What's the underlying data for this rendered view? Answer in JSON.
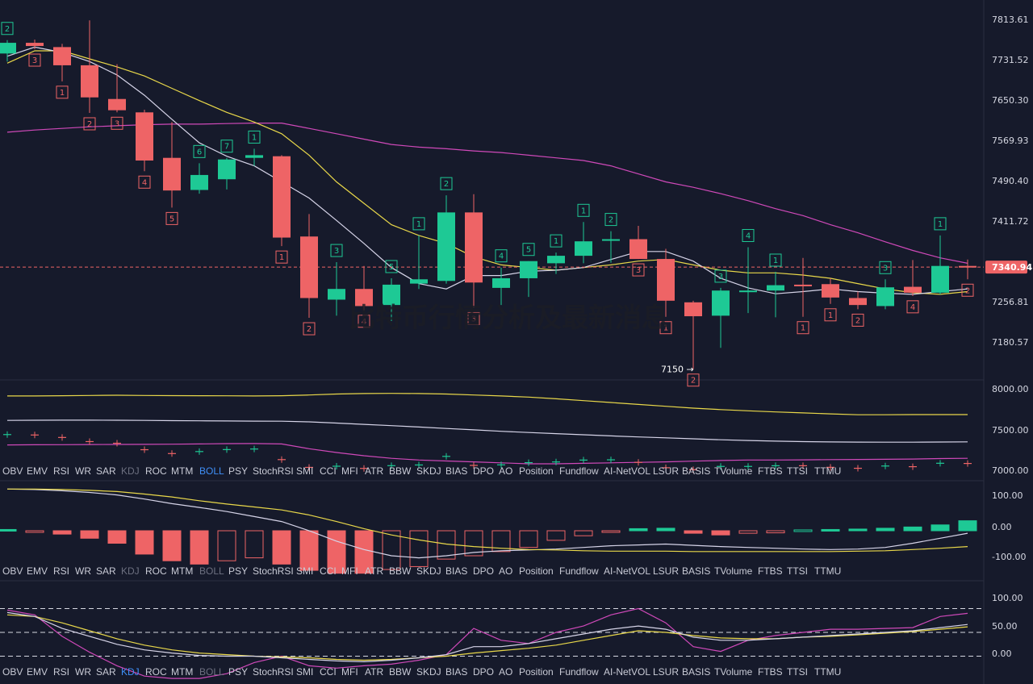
{
  "watermark": "比特币行情分析及最新消息",
  "colors": {
    "background": "#161a2b",
    "up": "#1ec995",
    "down": "#ee6466",
    "ma_fast": "#d6d4e8",
    "ma_slow": "#e9d84a",
    "ma_long": "#cf49b9",
    "grid": "#2a2e40",
    "active_indicator": "#3f8ff7"
  },
  "indicator_tabs": [
    "OBV",
    "EMV",
    "RSI",
    "WR",
    "SAR",
    "KDJ",
    "ROC",
    "MTM",
    "BOLL",
    "PSY",
    "StochRSI",
    "SMI",
    "CCI",
    "MFI",
    "ATR",
    "BBW",
    "SKDJ",
    "BIAS",
    "DPO",
    "AO",
    "Position",
    "Fundflow",
    "AI-NetVOL",
    "LSUR",
    "BASIS",
    "TVolume",
    "FTBS",
    "TTSI",
    "TTMU"
  ],
  "chart_data": [
    {
      "type": "candlestick",
      "ylim": [
        7130,
        7840
      ],
      "y_ticks": [
        "7813.61",
        "7731.52",
        "7650.30",
        "7569.93",
        "7490.40",
        "7411.72",
        "7256.81",
        "7180.57"
      ],
      "last_price": "7340.94",
      "last_price_value": 7340.94,
      "low_annotation": "7150 →",
      "low_annotation_value": 7150,
      "candles": [
        {
          "o": 7740,
          "h": 7765,
          "l": 7725,
          "c": 7760,
          "count": "2"
        },
        {
          "o": 7760,
          "h": 7766,
          "l": 7748,
          "c": 7754,
          "count": "3"
        },
        {
          "o": 7752,
          "h": 7758,
          "l": 7688,
          "c": 7718,
          "count": "1"
        },
        {
          "o": 7718,
          "h": 7802,
          "l": 7629,
          "c": 7658,
          "count": "2"
        },
        {
          "o": 7655,
          "h": 7720,
          "l": 7630,
          "c": 7634,
          "count": "3"
        },
        {
          "o": 7630,
          "h": 7635,
          "l": 7520,
          "c": 7540,
          "count": "4"
        },
        {
          "o": 7545,
          "h": 7612,
          "l": 7452,
          "c": 7484,
          "count": "5"
        },
        {
          "o": 7485,
          "h": 7535,
          "l": 7478,
          "c": 7513,
          "count": "6"
        },
        {
          "o": 7505,
          "h": 7545,
          "l": 7486,
          "c": 7542,
          "count": "7"
        },
        {
          "o": 7545,
          "h": 7562,
          "l": 7530,
          "c": 7550,
          "count": "1"
        },
        {
          "o": 7548,
          "h": 7550,
          "l": 7380,
          "c": 7396,
          "count": "1"
        },
        {
          "o": 7398,
          "h": 7440,
          "l": 7246,
          "c": 7283,
          "count": "2"
        },
        {
          "o": 7280,
          "h": 7350,
          "l": 7250,
          "c": 7300,
          "count": "3"
        },
        {
          "o": 7300,
          "h": 7343,
          "l": 7260,
          "c": 7268,
          "count": "4"
        },
        {
          "o": 7270,
          "h": 7320,
          "l": 7240,
          "c": 7308,
          "count": "5"
        },
        {
          "o": 7310,
          "h": 7400,
          "l": 7300,
          "c": 7318,
          "count": "1"
        },
        {
          "o": 7315,
          "h": 7475,
          "l": 7310,
          "c": 7443,
          "count": "2"
        },
        {
          "o": 7443,
          "h": 7477,
          "l": 7265,
          "c": 7312,
          "count": "3"
        },
        {
          "o": 7302,
          "h": 7340,
          "l": 7270,
          "c": 7320,
          "count": "4"
        },
        {
          "o": 7320,
          "h": 7352,
          "l": 7285,
          "c": 7352,
          "count": "5"
        },
        {
          "o": 7348,
          "h": 7368,
          "l": 7328,
          "c": 7362,
          "count": "1"
        },
        {
          "o": 7362,
          "h": 7425,
          "l": 7348,
          "c": 7389,
          "count": "1"
        },
        {
          "o": 7390,
          "h": 7408,
          "l": 7349,
          "c": 7393,
          "count": "2"
        },
        {
          "o": 7393,
          "h": 7418,
          "l": 7356,
          "c": 7356,
          "count": "3"
        },
        {
          "o": 7356,
          "h": 7375,
          "l": 7248,
          "c": 7278,
          "count": "1"
        },
        {
          "o": 7275,
          "h": 7278,
          "l": 7150,
          "c": 7249,
          "count": "2"
        },
        {
          "o": 7250,
          "h": 7302,
          "l": 7190,
          "c": 7297,
          "count": "3"
        },
        {
          "o": 7297,
          "h": 7378,
          "l": 7255,
          "c": 7297,
          "count": "4"
        },
        {
          "o": 7297,
          "h": 7332,
          "l": 7247,
          "c": 7307,
          "count": "1"
        },
        {
          "o": 7308,
          "h": 7358,
          "l": 7248,
          "c": 7307,
          "count": "1"
        },
        {
          "o": 7309,
          "h": 7320,
          "l": 7272,
          "c": 7284,
          "count": "1"
        },
        {
          "o": 7283,
          "h": 7295,
          "l": 7262,
          "c": 7270,
          "count": "2"
        },
        {
          "o": 7268,
          "h": 7318,
          "l": 7262,
          "c": 7303,
          "count": "3"
        },
        {
          "o": 7304,
          "h": 7354,
          "l": 7287,
          "c": 7293,
          "count": "4"
        },
        {
          "o": 7293,
          "h": 7400,
          "l": 7290,
          "c": 7343,
          "count": "1"
        },
        {
          "o": 7343,
          "h": 7355,
          "l": 7318,
          "c": 7340,
          "count": "2"
        }
      ],
      "ma_fast": [
        7735,
        7752,
        7742,
        7725,
        7700,
        7662,
        7617,
        7573,
        7548,
        7530,
        7500,
        7470,
        7428,
        7385,
        7340,
        7310,
        7300,
        7325,
        7325,
        7333,
        7335,
        7340,
        7355,
        7370,
        7370,
        7352,
        7320,
        7302,
        7291,
        7295,
        7300,
        7295,
        7292,
        7290,
        7295,
        7300
      ],
      "ma_slow": [
        7722,
        7745,
        7745,
        7730,
        7715,
        7698,
        7675,
        7652,
        7630,
        7612,
        7590,
        7550,
        7500,
        7460,
        7420,
        7400,
        7385,
        7360,
        7345,
        7340,
        7335,
        7340,
        7345,
        7352,
        7355,
        7345,
        7335,
        7330,
        7330,
        7326,
        7320,
        7310,
        7300,
        7293,
        7290,
        7295
      ],
      "ma_long": [
        7593,
        7597,
        7600,
        7603,
        7605,
        7607,
        7608,
        7608,
        7609,
        7610,
        7610,
        7600,
        7590,
        7580,
        7570,
        7565,
        7562,
        7558,
        7555,
        7550,
        7545,
        7540,
        7530,
        7515,
        7500,
        7490,
        7478,
        7465,
        7450,
        7437,
        7420,
        7405,
        7388,
        7372,
        7358,
        7348
      ]
    },
    {
      "type": "bands",
      "ylim": [
        6970,
        8040
      ],
      "y_ticks": [
        "8000.00",
        "7500.00",
        "7000.00"
      ],
      "upper": [
        7870,
        7870,
        7872,
        7875,
        7877,
        7875,
        7873,
        7872,
        7871,
        7870,
        7872,
        7880,
        7890,
        7895,
        7897,
        7895,
        7890,
        7880,
        7870,
        7858,
        7840,
        7820,
        7800,
        7780,
        7760,
        7740,
        7725,
        7712,
        7700,
        7690,
        7680,
        7670,
        7670,
        7672,
        7672,
        7672
      ],
      "middle": [
        7610,
        7612,
        7613,
        7613,
        7612,
        7610,
        7608,
        7606,
        7604,
        7603,
        7602,
        7595,
        7582,
        7568,
        7555,
        7540,
        7525,
        7510,
        7495,
        7482,
        7470,
        7458,
        7446,
        7435,
        7425,
        7415,
        7405,
        7397,
        7390,
        7385,
        7382,
        7380,
        7379,
        7379,
        7381,
        7383
      ],
      "lower": [
        7350,
        7352,
        7353,
        7354,
        7355,
        7356,
        7358,
        7360,
        7364,
        7365,
        7360,
        7310,
        7270,
        7235,
        7208,
        7190,
        7180,
        7170,
        7160,
        7150,
        7150,
        7155,
        7160,
        7165,
        7170,
        7178,
        7185,
        7190,
        7190,
        7192,
        7194,
        7196,
        7198,
        7200,
        7205,
        7208
      ]
    },
    {
      "type": "histogram",
      "ylim": [
        -120,
        120
      ],
      "y_ticks": [
        "100.00",
        "0.00",
        "-100.00"
      ],
      "hist": [
        3,
        -2,
        -8,
        -18,
        -30,
        -56,
        -72,
        -80,
        -72,
        -65,
        -80,
        -95,
        -102,
        -102,
        -93,
        -86,
        -68,
        -60,
        -50,
        -40,
        -23,
        -12,
        -3,
        5,
        6,
        -6,
        -10,
        -6,
        -5,
        2,
        3,
        4,
        6,
        9,
        14,
        24
      ],
      "line1": [
        100,
        99,
        96,
        92,
        86,
        76,
        65,
        56,
        46,
        34,
        22,
        0,
        -25,
        -45,
        -60,
        -65,
        -60,
        -52,
        -48,
        -46,
        -44,
        -40,
        -36,
        -34,
        -32,
        -35,
        -38,
        -40,
        -42,
        -44,
        -45,
        -44,
        -40,
        -30,
        -18,
        -6
      ],
      "line2": [
        100,
        100,
        99,
        97,
        94,
        88,
        81,
        72,
        64,
        57,
        50,
        38,
        22,
        5,
        -10,
        -22,
        -32,
        -38,
        -42,
        -45,
        -46,
        -48,
        -49,
        -49,
        -49,
        -50,
        -50,
        -50,
        -50,
        -50,
        -50,
        -49,
        -48,
        -45,
        -42,
        -38
      ]
    },
    {
      "type": "oscillator",
      "ylim": [
        -15,
        115
      ],
      "y_ticks": [
        "100.00",
        "50.00",
        "0.00"
      ],
      "levels": [
        80,
        50,
        20
      ],
      "k": [
        75,
        70,
        55,
        45,
        35,
        28,
        24,
        21,
        20,
        20,
        18,
        16,
        14,
        13,
        15,
        18,
        22,
        32,
        32,
        36,
        42,
        48,
        54,
        58,
        54,
        44,
        40,
        40,
        42,
        44,
        46,
        48,
        50,
        52,
        56,
        60
      ],
      "d": [
        72,
        70,
        62,
        52,
        42,
        34,
        28,
        24,
        22,
        20,
        19,
        18,
        16,
        15,
        16,
        18,
        20,
        24,
        27,
        30,
        34,
        40,
        46,
        52,
        50,
        46,
        43,
        42,
        42,
        44,
        45,
        47,
        49,
        51,
        54,
        57
      ],
      "j": [
        78,
        72,
        45,
        25,
        8,
        -5,
        -8,
        -8,
        -2,
        12,
        20,
        8,
        5,
        8,
        10,
        15,
        22,
        55,
        40,
        36,
        50,
        58,
        72,
        80,
        62,
        32,
        26,
        40,
        46,
        50,
        54,
        54,
        55,
        56,
        70,
        74
      ]
    }
  ]
}
